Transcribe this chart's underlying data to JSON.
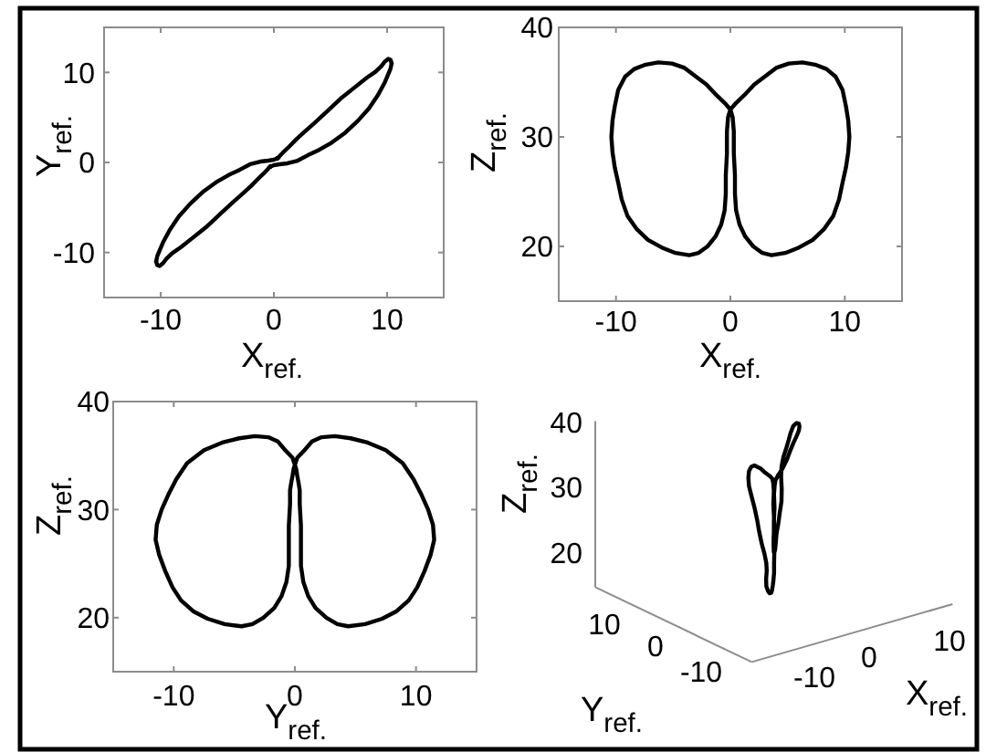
{
  "chart_data": [
    {
      "type": "line",
      "xlabel": "X$_{ref.}$",
      "ylabel": "Y$_{ref.}$",
      "xlim": [
        -15,
        15
      ],
      "ylim": [
        -15,
        15
      ],
      "xticks": [
        -10,
        0,
        10
      ],
      "yticks": [
        -10,
        0,
        10
      ],
      "series": [
        {
          "color": "#000000",
          "x": [
            -10.4,
            -10.3,
            -10.1,
            -9.8,
            -9.2,
            -8.4,
            -7.4,
            -6.3,
            -5.1,
            -4.0,
            -3.0,
            -2.1,
            -1.2,
            -0.5,
            0,
            0.2,
            0.3,
            0.3,
            0.4,
            0.4,
            0.5,
            0.8,
            1.3,
            2.0,
            2.8,
            3.6,
            4.8,
            6.0,
            7.2,
            8.2,
            9.0,
            9.5,
            9.8,
            10.1,
            10.3,
            10.4
          ],
          "values": [
            -11.0,
            -10.4,
            -9.8,
            -8.9,
            -7.5,
            -6.0,
            -4.6,
            -3.3,
            -2.2,
            -1.4,
            -0.8,
            -0.2,
            0.1,
            0.2,
            0.3,
            0.4,
            0.4,
            0.5,
            0.5,
            0.5,
            0.7,
            1.1,
            1.7,
            2.6,
            3.5,
            4.4,
            5.8,
            7.2,
            8.4,
            9.4,
            10.1,
            10.7,
            11.2,
            11.5,
            11.4,
            11.0
          ]
        },
        {
          "color": "#000000",
          "x": [
            10.4,
            10.3,
            10.1,
            9.8,
            9.2,
            8.4,
            7.4,
            6.3,
            5.1,
            4.0,
            3.0,
            2.1,
            1.2,
            0.5,
            0,
            -0.2,
            -0.3,
            -0.3,
            -0.4,
            -0.4,
            -0.5,
            -0.8,
            -1.3,
            -2.0,
            -2.8,
            -3.6,
            -4.8,
            -6.0,
            -7.2,
            -8.2,
            -9.0,
            -9.5,
            -9.8,
            -10.1,
            -10.3,
            -10.4
          ],
          "values": [
            11.0,
            10.4,
            9.8,
            8.9,
            7.5,
            6.0,
            4.6,
            3.3,
            2.2,
            1.4,
            0.8,
            0.2,
            -0.1,
            -0.2,
            -0.3,
            -0.4,
            -0.4,
            -0.5,
            -0.5,
            -0.5,
            -0.7,
            -1.1,
            -1.7,
            -2.6,
            -3.5,
            -4.4,
            -5.8,
            -7.2,
            -8.4,
            -9.4,
            -10.1,
            -10.7,
            -11.2,
            -11.5,
            -11.4,
            -11.0
          ]
        }
      ]
    },
    {
      "type": "line",
      "xlabel": "X$_{ref.}$",
      "ylabel": "Z$_{ref.}$",
      "xlim": [
        -15,
        15
      ],
      "ylim": [
        15,
        40
      ],
      "xticks": [
        -10,
        0,
        10
      ],
      "yticks": [
        20,
        30,
        40
      ]
    },
    {
      "type": "line",
      "xlabel": "Y$_{ref.}$",
      "ylabel": "Z$_{ref.}$",
      "xlim": [
        -15,
        15
      ],
      "ylim": [
        15,
        40
      ],
      "xticks": [
        -10,
        0,
        10
      ],
      "yticks": [
        20,
        30,
        40
      ]
    },
    {
      "type": "other",
      "annotations": [
        "Z$_{ref.}$",
        "40",
        "30",
        "20",
        "10",
        "0",
        "-10",
        "Y$_{ref.}$",
        "-10",
        "0",
        "10",
        "X$_{ref.}$"
      ]
    }
  ]
}
